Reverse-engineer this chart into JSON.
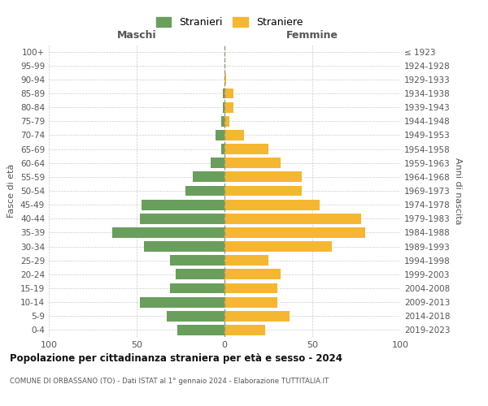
{
  "age_groups_bottom_to_top": [
    "0-4",
    "5-9",
    "10-14",
    "15-19",
    "20-24",
    "25-29",
    "30-34",
    "35-39",
    "40-44",
    "45-49",
    "50-54",
    "55-59",
    "60-64",
    "65-69",
    "70-74",
    "75-79",
    "80-84",
    "85-89",
    "90-94",
    "95-99",
    "100+"
  ],
  "birth_years_bottom_to_top": [
    "2019-2023",
    "2014-2018",
    "2009-2013",
    "2004-2008",
    "1999-2003",
    "1994-1998",
    "1989-1993",
    "1984-1988",
    "1979-1983",
    "1974-1978",
    "1969-1973",
    "1964-1968",
    "1959-1963",
    "1954-1958",
    "1949-1953",
    "1944-1948",
    "1939-1943",
    "1934-1938",
    "1929-1933",
    "1924-1928",
    "≤ 1923"
  ],
  "maschi_bottom_to_top": [
    27,
    33,
    48,
    31,
    28,
    31,
    46,
    64,
    48,
    47,
    22,
    18,
    8,
    2,
    5,
    2,
    1,
    1,
    0,
    0,
    0
  ],
  "femmine_bottom_to_top": [
    23,
    37,
    30,
    30,
    32,
    25,
    61,
    80,
    78,
    54,
    44,
    44,
    32,
    25,
    11,
    3,
    5,
    5,
    1,
    0,
    0
  ],
  "color_maschi": "#6a9e5c",
  "color_femmine": "#f5b731",
  "title": "Popolazione per cittadinanza straniera per età e sesso - 2024",
  "subtitle": "COMUNE DI ORBASSANO (TO) - Dati ISTAT al 1° gennaio 2024 - Elaborazione TUTTITALIA.IT",
  "xlabel_left": "Maschi",
  "xlabel_right": "Femmine",
  "ylabel_left": "Fasce di età",
  "ylabel_right": "Anni di nascita",
  "legend_maschi": "Stranieri",
  "legend_femmine": "Straniere",
  "xlim": 100,
  "bg_color": "#ffffff",
  "grid_color": "#cccccc"
}
